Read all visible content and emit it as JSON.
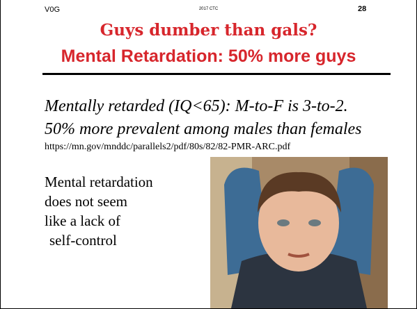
{
  "header": {
    "left": "V0G",
    "center": "2017 CTC",
    "page": "28"
  },
  "title": {
    "line1": "Guys dumber than gals?",
    "line2": "Mental Retardation: 50% more guys"
  },
  "body": {
    "lines": [
      "Mentally retarded (IQ<65): M-to-F is 3-to-2.",
      "50% more prevalent among males than females"
    ],
    "url": "https://mn.gov/mnddc/parallels2/pdf/80s/82/82-PMR-ARC.pdf"
  },
  "caption": {
    "lines": [
      "Mental retardation",
      "does not seem",
      "like a lack of",
      "self-control"
    ]
  }
}
